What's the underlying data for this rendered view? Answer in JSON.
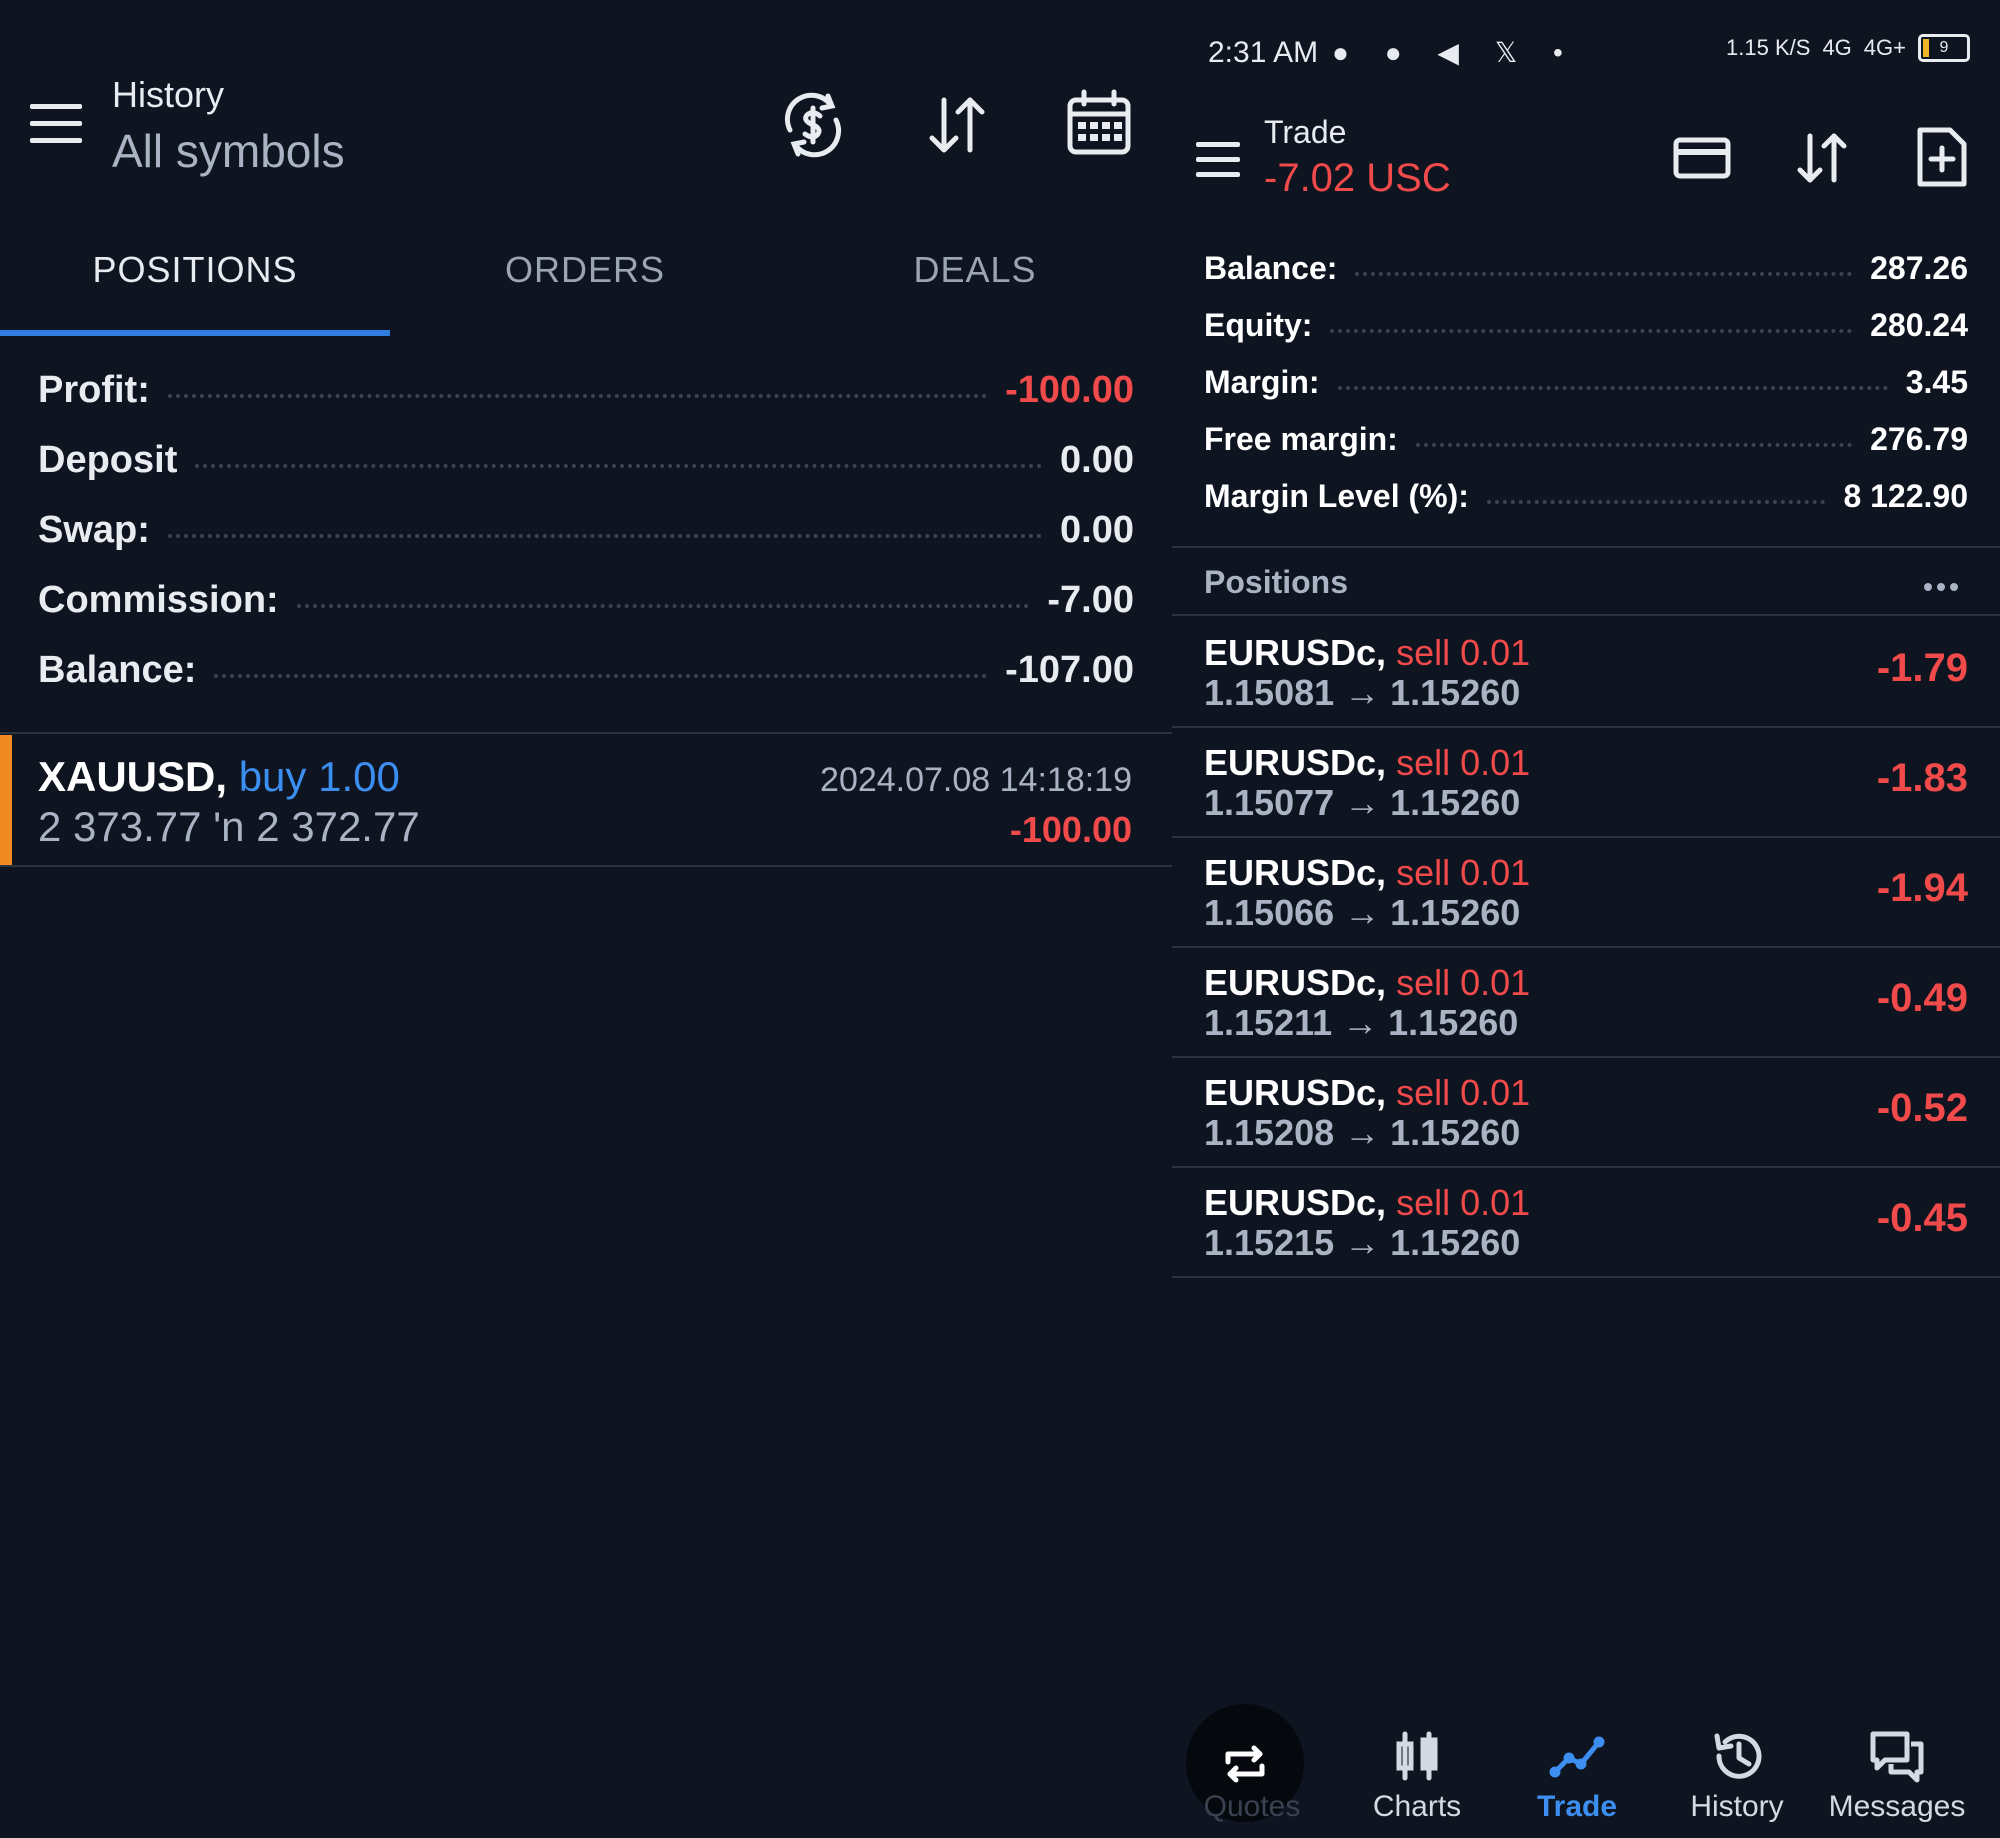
{
  "history": {
    "title": "History",
    "subtitle": "All symbols",
    "icons": {
      "currency": "currency-exchange-icon",
      "sort": "sort-icon",
      "calendar": "calendar-icon",
      "menu": "hamburger-menu-icon"
    },
    "tabs": [
      {
        "label": "POSITIONS"
      },
      {
        "label": "ORDERS"
      },
      {
        "label": "DEALS"
      }
    ],
    "active_tab": "POSITIONS",
    "summary": [
      {
        "label": "Profit:",
        "value": "-100.00"
      },
      {
        "label": "Deposit",
        "value": "0.00"
      },
      {
        "label": "Swap:",
        "value": "0.00"
      },
      {
        "label": "Commission:",
        "value": "-7.00"
      },
      {
        "label": "Balance:",
        "value": "-107.00"
      }
    ],
    "position": {
      "symbol": "XAUUSD,",
      "side": "buy 1.00",
      "prices": "2 373.77 'n  2 372.77",
      "time": "2024.07.08 14:18:19",
      "profit": "-100.00"
    }
  },
  "status_bar": {
    "time": "2:31 AM",
    "icons_left": "● ● ◀ 𝕏 •",
    "speed": "1.15 K/S",
    "network1": "4G",
    "network2": "4G+",
    "battery": "9"
  },
  "trade": {
    "title": "Trade",
    "subtitle": "-7.02 USC",
    "icons": {
      "card": "credit-card-icon",
      "sort": "sort-icon",
      "new": "new-document-icon",
      "menu": "hamburger-menu-icon"
    },
    "account": [
      {
        "label": "Balance:",
        "value": "287.26"
      },
      {
        "label": "Equity:",
        "value": "280.24"
      },
      {
        "label": "Margin:",
        "value": "3.45"
      },
      {
        "label": "Free margin:",
        "value": "276.79"
      },
      {
        "label": "Margin Level (%):",
        "value": "8 122.90"
      }
    ],
    "positions_label": "Positions",
    "positions": [
      {
        "symbol": "EURUSDc,",
        "side": "sell 0.01",
        "prices": "1.15081 → 1.15260",
        "profit": "-1.79"
      },
      {
        "symbol": "EURUSDc,",
        "side": "sell 0.01",
        "prices": "1.15077 → 1.15260",
        "profit": "-1.83"
      },
      {
        "symbol": "EURUSDc,",
        "side": "sell 0.01",
        "prices": "1.15066 → 1.15260",
        "profit": "-1.94"
      },
      {
        "symbol": "EURUSDc,",
        "side": "sell 0.01",
        "prices": "1.15211 → 1.15260",
        "profit": "-0.49"
      },
      {
        "symbol": "EURUSDc,",
        "side": "sell 0.01",
        "prices": "1.15208 → 1.15260",
        "profit": "-0.52"
      },
      {
        "symbol": "EURUSDc,",
        "side": "sell 0.01",
        "prices": "1.15215 → 1.15260",
        "profit": "-0.45"
      }
    ]
  },
  "nav": [
    {
      "label": "Quotes",
      "icon": "quotes-icon"
    },
    {
      "label": "Charts",
      "icon": "charts-icon"
    },
    {
      "label": "Trade",
      "icon": "trade-icon"
    },
    {
      "label": "History",
      "icon": "history-icon"
    },
    {
      "label": "Messages",
      "icon": "messages-icon"
    }
  ],
  "active_nav": "Trade",
  "colors": {
    "negative": "#f04a4a",
    "accent": "#2f7de1",
    "buy": "#3c8ef0",
    "stripe": "#f08b24",
    "background": "#0e1420"
  }
}
